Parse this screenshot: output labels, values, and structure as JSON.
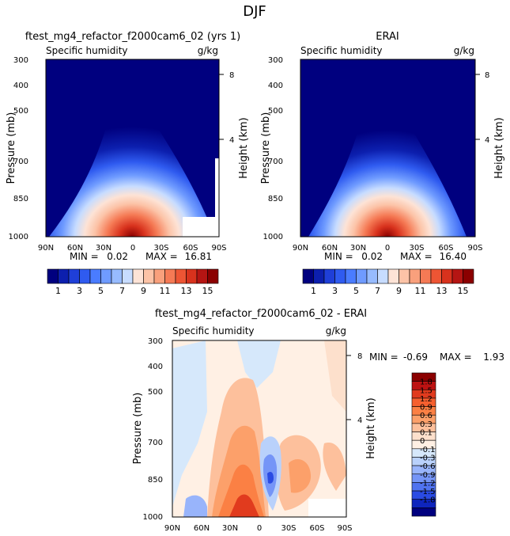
{
  "figure": {
    "title": "DJF"
  },
  "chart_data": [
    {
      "type": "heatmap",
      "id": "model",
      "title": "ftest_mg4_refactor_f2000cam6_02 (yrs 1)",
      "variable": "Specific humidity",
      "units": "g/kg",
      "ylabel": "Pressure (mb)",
      "ylabel_right": "Height (km)",
      "x_ticks": [
        "90N",
        "60N",
        "30N",
        "0",
        "30S",
        "60S",
        "90S"
      ],
      "y_ticks": [
        "300",
        "400",
        "500",
        "700",
        "850",
        "1000"
      ],
      "y_ticks_right": [
        "8",
        "4"
      ],
      "ylim": [
        300,
        1000
      ],
      "y_scale": "log",
      "min_label": "MIN =",
      "min": "0.02",
      "max_label": "MAX =",
      "max": "16.81",
      "peak_lat": 0,
      "peak_value": 16.81
    },
    {
      "type": "heatmap",
      "id": "obs",
      "title": "ERAI",
      "variable": "Specific humidity",
      "units": "g/kg",
      "ylabel": "Pressure (mb)",
      "ylabel_right": "Height (km)",
      "x_ticks": [
        "90N",
        "60N",
        "30N",
        "0",
        "30S",
        "60S",
        "90S"
      ],
      "y_ticks": [
        "300",
        "400",
        "500",
        "700",
        "850",
        "1000"
      ],
      "y_ticks_right": [
        "8",
        "4"
      ],
      "ylim": [
        300,
        1000
      ],
      "y_scale": "log",
      "min_label": "MIN =",
      "min": "0.02",
      "max_label": "MAX =",
      "max": "16.40",
      "peak_lat": 0,
      "peak_value": 16.4
    },
    {
      "type": "heatmap",
      "id": "diff",
      "title": "ftest_mg4_refactor_f2000cam6_02 - ERAI",
      "variable": "Specific humidity",
      "units": "g/kg",
      "ylabel": "Pressure (mb)",
      "ylabel_right": "Height (km)",
      "x_ticks": [
        "90N",
        "60N",
        "30N",
        "0",
        "30S",
        "60S",
        "90S"
      ],
      "y_ticks": [
        "300",
        "400",
        "500",
        "700",
        "850",
        "1000"
      ],
      "y_ticks_right": [
        "8",
        "4"
      ],
      "ylim": [
        300,
        1000
      ],
      "y_scale": "log",
      "min_label": "MIN =",
      "min": "-0.69",
      "max_label": "MAX =",
      "max": "1.93"
    }
  ],
  "colorbar_levels": {
    "values": {
      "colors": [
        "#00007f",
        "#0c1fae",
        "#1f3fd8",
        "#2f5bf0",
        "#4a7cff",
        "#6f9bff",
        "#97bbff",
        "#c7dcff",
        "#fde3d6",
        "#fcc3a7",
        "#f9a07c",
        "#f57a55",
        "#ed5534",
        "#d8321d",
        "#b51513",
        "#8b0000"
      ],
      "labels": [
        "1",
        "3",
        "5",
        "7",
        "9",
        "11",
        "13",
        "15"
      ]
    },
    "diff": {
      "colors": [
        "#8b0000",
        "#bd1212",
        "#e13b1e",
        "#f6602f",
        "#fb8044",
        "#fca06a",
        "#fdc09c",
        "#fde0cc",
        "#fff0e4",
        "#d6e8fb",
        "#b9d1fb",
        "#98b4fb",
        "#7595f7",
        "#5073f0",
        "#2a4be3",
        "#0e25bd",
        "#00007f"
      ],
      "labels": [
        "1.8",
        "1.5",
        "1.2",
        "0.9",
        "0.6",
        "0.3",
        "0.1",
        "0",
        "-0.1",
        "-0.3",
        "-0.6",
        "-0.9",
        "-1.2",
        "-1.5",
        "-1.8"
      ]
    }
  }
}
